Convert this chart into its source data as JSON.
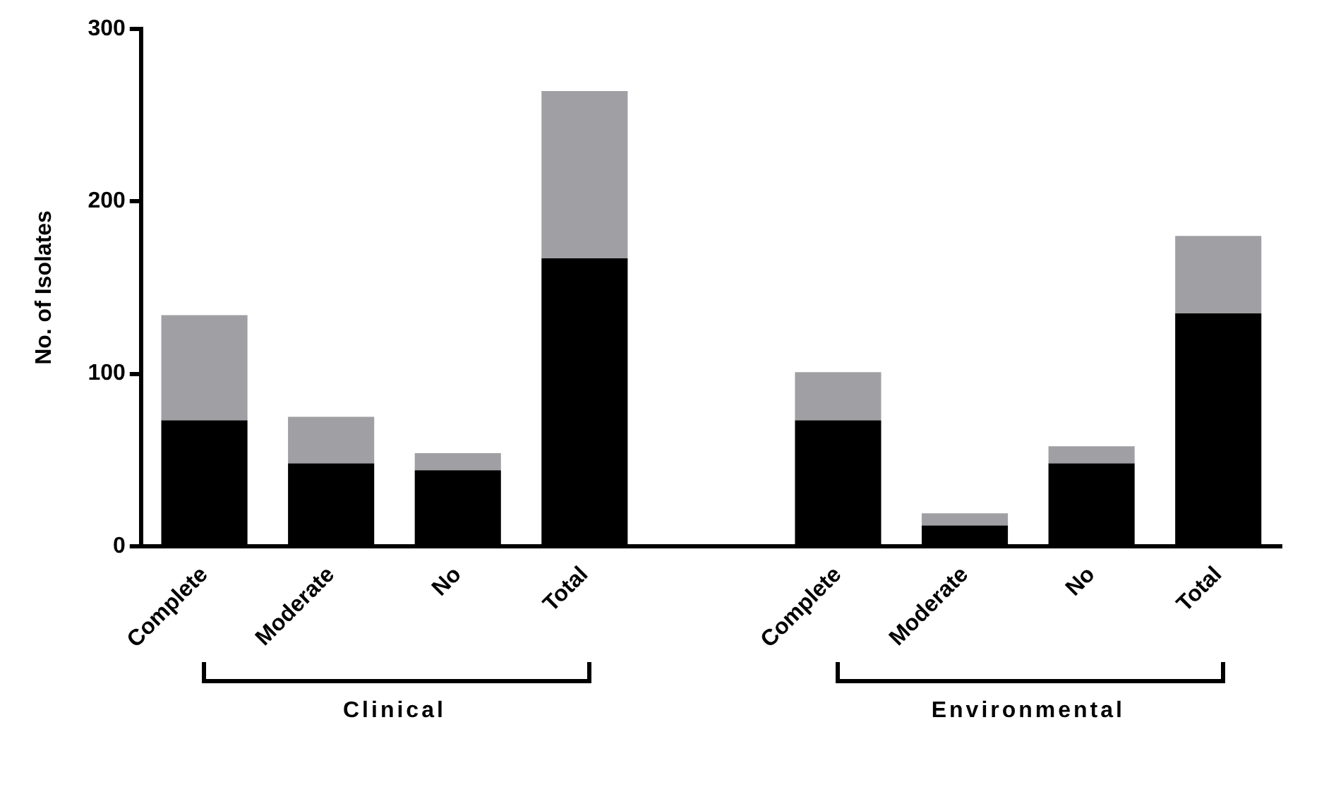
{
  "chart_data": {
    "type": "bar",
    "stacked": true,
    "ylabel": "No. of Isolates",
    "categories": [
      "Complete",
      "Moderate",
      "No",
      "Total",
      null,
      "Complete",
      "Moderate",
      "No",
      "Total"
    ],
    "series": [
      {
        "color": "#000000",
        "values": [
          73,
          48,
          44,
          167,
          null,
          73,
          12,
          48,
          135
        ]
      },
      {
        "color": "#a0a0a4",
        "values": [
          61,
          27,
          10,
          97,
          null,
          28,
          7,
          10,
          45
        ]
      }
    ],
    "ylim": [
      0,
      300
    ],
    "yticks": [
      0,
      100,
      200,
      300
    ],
    "grid": false,
    "legend": false,
    "annotations": [
      "Clinical",
      "Environmental"
    ]
  }
}
